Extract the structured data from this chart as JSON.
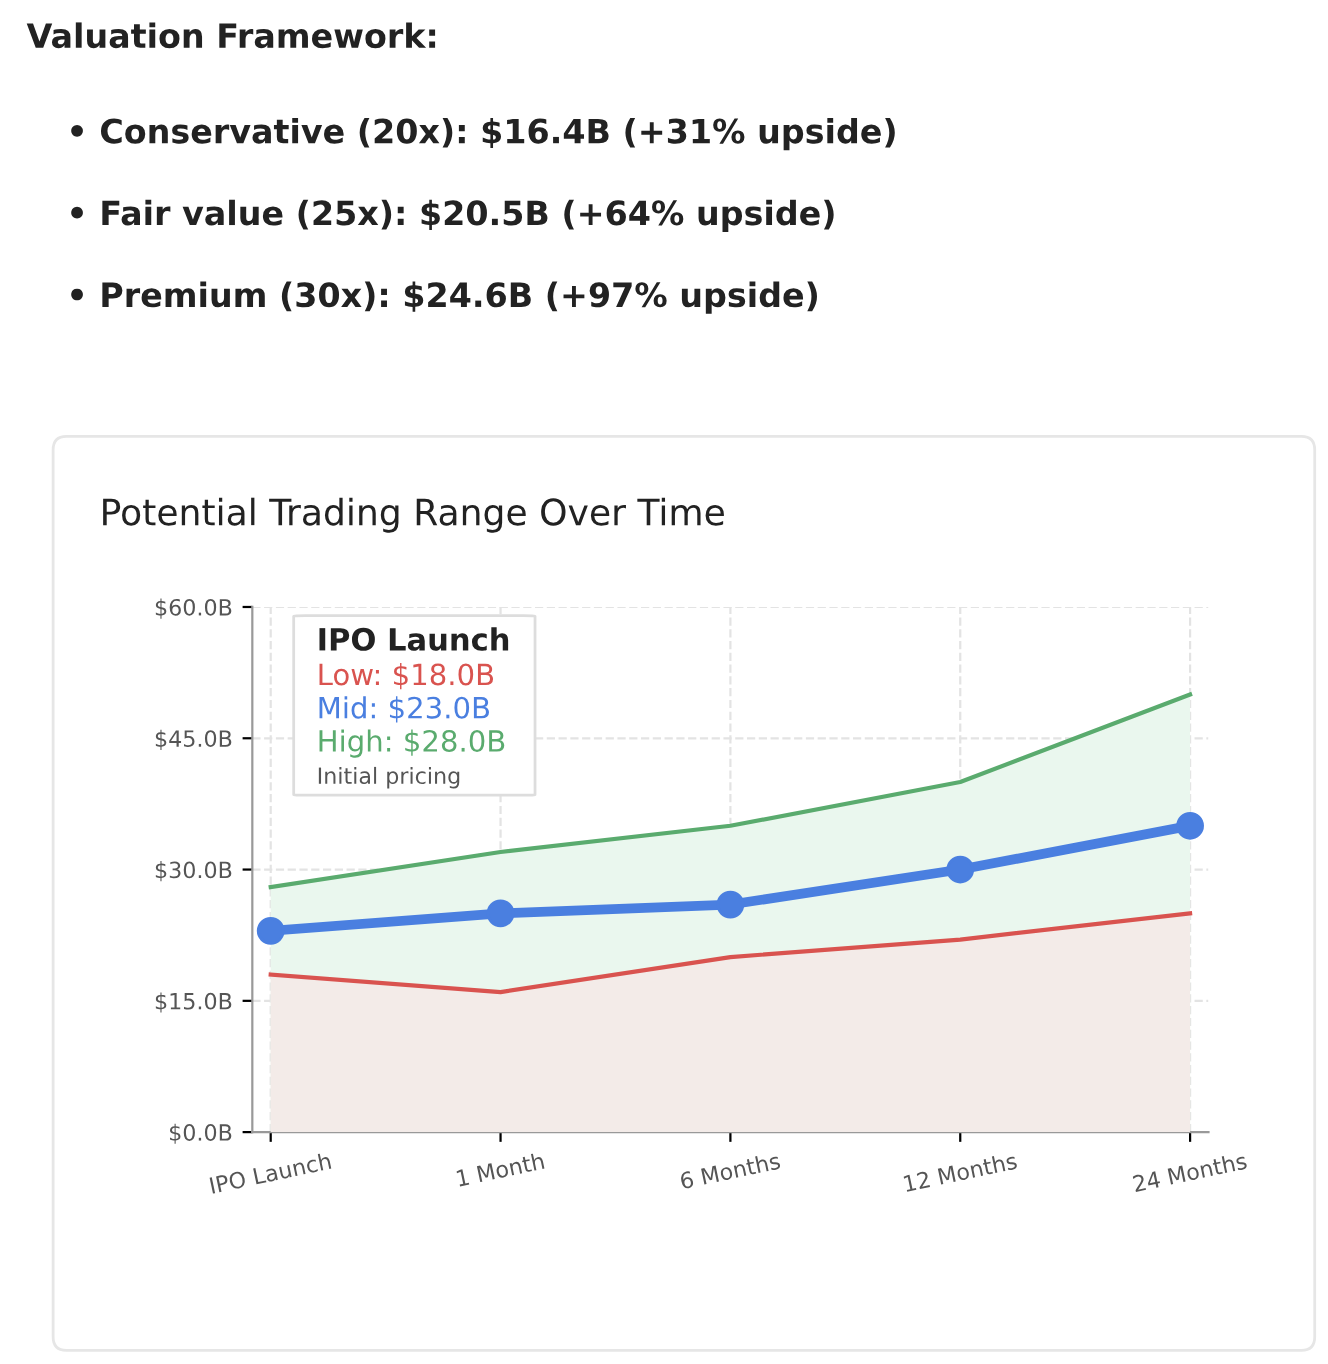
{
  "chart_data": {
    "type": "area",
    "title": "Potential Trading Range Over Time",
    "categories": [
      "IPO Launch",
      "1 Month",
      "6 Months",
      "12 Months",
      "24 Months"
    ],
    "series": [
      {
        "color": "#d9534f",
        "values": [
          18,
          16,
          20,
          22,
          25
        ]
      },
      {
        "type": "line",
        "color": "#4a7fe0",
        "marker": "circle",
        "values": [
          23,
          25,
          26,
          30,
          35
        ]
      },
      {
        "color": "#5aab6e",
        "values": [
          28,
          32,
          35,
          40,
          50
        ]
      }
    ],
    "ylim": [
      0,
      60
    ],
    "yticks": [
      {
        "value": 0,
        "label": "$0.0B"
      },
      {
        "value": 15,
        "label": "$15.0B"
      },
      {
        "value": 30,
        "label": "$30.0B"
      },
      {
        "value": 45,
        "label": "$45.0B"
      },
      {
        "value": 60,
        "label": "$60.0B"
      }
    ],
    "grid": true,
    "annotations": [
      "Valuation Framework:",
      "• Conservative (20x): $16.4B (+31% upside)",
      "• Fair value (25x): $20.5B (+64% upside)",
      "• Premium (30x): $24.6B (+97% upside)",
      "IPO Launch",
      "Low: $18.0B",
      "Mid: $23.0B",
      "High: $28.0B",
      "Initial pricing"
    ]
  }
}
